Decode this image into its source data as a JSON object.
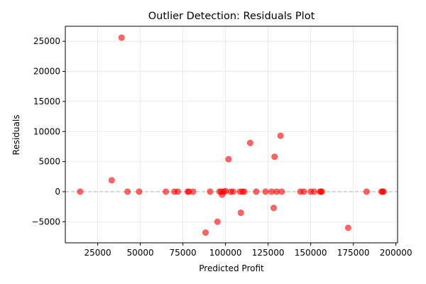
{
  "chart_data": {
    "type": "scatter",
    "title": "Outlier Detection: Residuals Plot",
    "xlabel": "Predicted Profit",
    "ylabel": "Residuals",
    "xlim": [
      6000,
      201000
    ],
    "ylim": [
      -8500,
      27500
    ],
    "xticks": [
      25000,
      50000,
      75000,
      100000,
      125000,
      150000,
      175000,
      200000
    ],
    "yticks": [
      -5000,
      0,
      5000,
      10000,
      15000,
      20000,
      25000
    ],
    "grid": true,
    "reference_line_y": 0,
    "point_color": "#ff0000",
    "points": [
      {
        "x": 14700,
        "y": 0
      },
      {
        "x": 33200,
        "y": 1900
      },
      {
        "x": 39000,
        "y": 25600
      },
      {
        "x": 42500,
        "y": 0
      },
      {
        "x": 49300,
        "y": 0
      },
      {
        "x": 65000,
        "y": 0
      },
      {
        "x": 70000,
        "y": 0
      },
      {
        "x": 72000,
        "y": 0
      },
      {
        "x": 77800,
        "y": 0
      },
      {
        "x": 78500,
        "y": 0
      },
      {
        "x": 81000,
        "y": 0
      },
      {
        "x": 88300,
        "y": -6800
      },
      {
        "x": 91000,
        "y": 0
      },
      {
        "x": 95300,
        "y": -5000
      },
      {
        "x": 96500,
        "y": 0
      },
      {
        "x": 97500,
        "y": 0
      },
      {
        "x": 98000,
        "y": -500
      },
      {
        "x": 99000,
        "y": 0
      },
      {
        "x": 100000,
        "y": 100
      },
      {
        "x": 101800,
        "y": 5400
      },
      {
        "x": 103000,
        "y": 0
      },
      {
        "x": 104500,
        "y": 0
      },
      {
        "x": 108500,
        "y": 0
      },
      {
        "x": 109000,
        "y": -3500
      },
      {
        "x": 110000,
        "y": 0
      },
      {
        "x": 111000,
        "y": 0
      },
      {
        "x": 114500,
        "y": 8100
      },
      {
        "x": 118000,
        "y": 0
      },
      {
        "x": 123500,
        "y": 0
      },
      {
        "x": 127000,
        "y": 0
      },
      {
        "x": 128300,
        "y": -2700
      },
      {
        "x": 128800,
        "y": 5800
      },
      {
        "x": 130000,
        "y": 0
      },
      {
        "x": 132300,
        "y": 9300
      },
      {
        "x": 133000,
        "y": 0
      },
      {
        "x": 144000,
        "y": 0
      },
      {
        "x": 146000,
        "y": 0
      },
      {
        "x": 150000,
        "y": 0
      },
      {
        "x": 152000,
        "y": 0
      },
      {
        "x": 155500,
        "y": 0
      },
      {
        "x": 156000,
        "y": 0
      },
      {
        "x": 156500,
        "y": 0
      },
      {
        "x": 172000,
        "y": -6000
      },
      {
        "x": 182800,
        "y": 0
      },
      {
        "x": 191500,
        "y": 0
      },
      {
        "x": 192200,
        "y": 0
      },
      {
        "x": 192800,
        "y": 0
      }
    ]
  }
}
